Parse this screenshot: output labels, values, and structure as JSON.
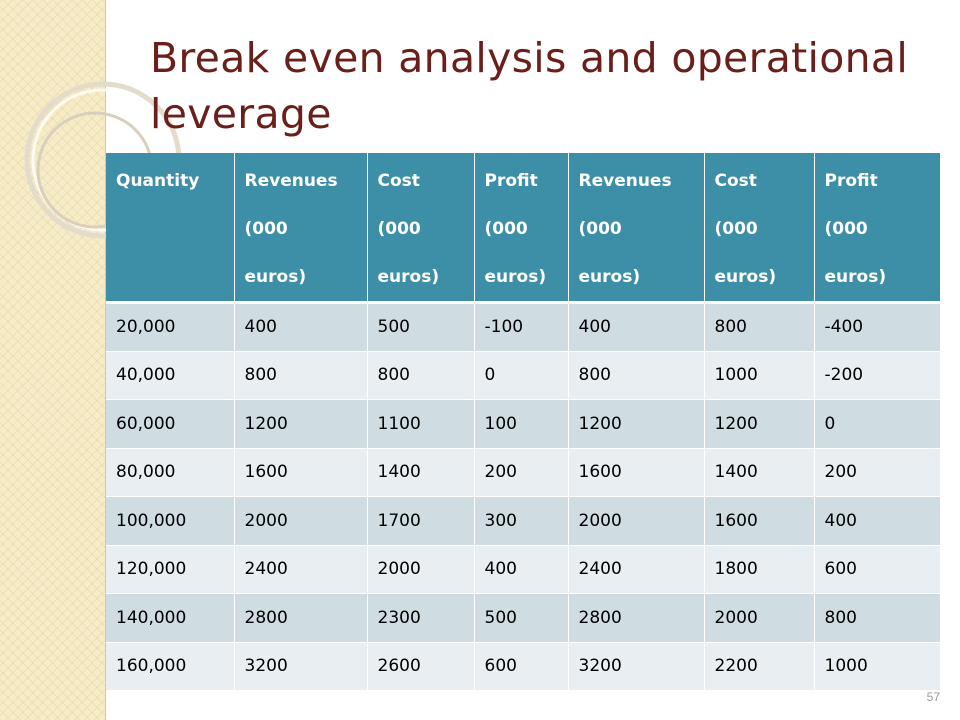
{
  "slide": {
    "title": "Break even analysis and operational leverage",
    "number": "57"
  },
  "table": {
    "headers": [
      "Quantity",
      "Revenues\n(000\neuros)",
      "Cost\n(000\neuros)",
      "Profit\n(000\neuros)",
      "Revenues\n(000\neuros)",
      "Cost\n(000\neuros)",
      "Profit\n(000\neuros)"
    ],
    "rows": [
      [
        "20,000",
        "400",
        "500",
        "-100",
        "400",
        "800",
        "-400"
      ],
      [
        "40,000",
        "800",
        "800",
        "0",
        "800",
        "1000",
        "-200"
      ],
      [
        "60,000",
        "1200",
        "1100",
        "100",
        "1200",
        "1200",
        "0"
      ],
      [
        "80,000",
        "1600",
        "1400",
        "200",
        "1600",
        "1400",
        "200"
      ],
      [
        "100,000",
        "2000",
        "1700",
        "300",
        "2000",
        "1600",
        "400"
      ],
      [
        "120,000",
        "2400",
        "2000",
        "400",
        "2400",
        "1800",
        "600"
      ],
      [
        "140,000",
        "2800",
        "2300",
        "500",
        "2800",
        "2000",
        "800"
      ],
      [
        "160,000",
        "3200",
        "2600",
        "600",
        "3200",
        "2200",
        "1000"
      ]
    ]
  },
  "colors": {
    "title": "#6b1f1a",
    "header_bg": "#3c8fa7",
    "row_odd_bg": "#cfdde3",
    "row_even_bg": "#e8eef1",
    "side_strip": "#f7ecc8"
  }
}
